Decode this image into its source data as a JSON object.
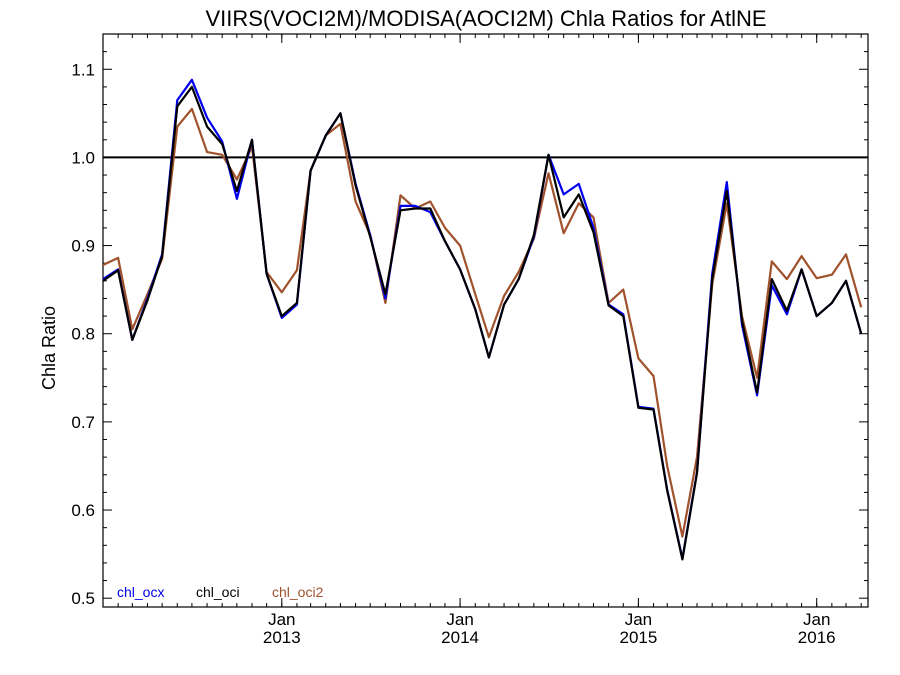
{
  "chart_data": {
    "type": "line",
    "title": "VIIRS(VOCI2M)/MODISA(AOCI2M)  Chla Ratios for AtlNE",
    "ylabel": "Chla Ratio",
    "xlabel": "",
    "ylim": [
      0.49,
      1.14
    ],
    "yticks": [
      0.5,
      0.6,
      0.7,
      0.8,
      0.9,
      1.0,
      1.1
    ],
    "ytick_labels": [
      "0.5",
      "0.6",
      "0.7",
      "0.8",
      "0.9",
      "1.0",
      "1.1"
    ],
    "xlim": [
      "2012-01-01",
      "2016-04-15"
    ],
    "xtick_dates": [
      "2013-01-01",
      "2014-01-01",
      "2015-01-01",
      "2016-01-01"
    ],
    "xtick_labels": [
      {
        "month": "Jan",
        "year": "2013"
      },
      {
        "month": "Jan",
        "year": "2014"
      },
      {
        "month": "Jan",
        "year": "2015"
      },
      {
        "month": "Jan",
        "year": "2016"
      }
    ],
    "reference_line": 1.0,
    "grid": false,
    "legend_position": "bottom-left",
    "x": [
      "2012-01-01",
      "2012-02-01",
      "2012-03-01",
      "2012-04-01",
      "2012-05-01",
      "2012-06-01",
      "2012-07-01",
      "2012-08-01",
      "2012-09-01",
      "2012-10-01",
      "2012-11-01",
      "2012-12-01",
      "2013-01-01",
      "2013-02-01",
      "2013-03-01",
      "2013-04-01",
      "2013-05-01",
      "2013-06-01",
      "2013-07-01",
      "2013-08-01",
      "2013-09-01",
      "2013-10-01",
      "2013-11-01",
      "2013-12-01",
      "2014-01-01",
      "2014-02-01",
      "2014-03-01",
      "2014-04-01",
      "2014-05-01",
      "2014-06-01",
      "2014-07-01",
      "2014-08-01",
      "2014-09-01",
      "2014-10-01",
      "2014-11-01",
      "2014-12-01",
      "2015-01-01",
      "2015-02-01",
      "2015-03-01",
      "2015-04-01",
      "2015-05-01",
      "2015-06-01",
      "2015-07-01",
      "2015-08-01",
      "2015-09-01",
      "2015-10-01",
      "2015-11-01",
      "2015-12-01",
      "2016-01-01",
      "2016-02-01",
      "2016-03-01",
      "2016-04-01"
    ],
    "series": [
      {
        "name": "chl_ocx",
        "color": "#0000ee",
        "values": [
          0.862,
          0.873,
          0.793,
          0.84,
          0.89,
          1.065,
          1.088,
          1.045,
          1.018,
          0.953,
          1.02,
          0.868,
          0.818,
          0.833,
          0.985,
          1.025,
          1.05,
          0.97,
          0.912,
          0.84,
          0.945,
          0.945,
          0.938,
          0.905,
          0.873,
          0.828,
          0.773,
          0.833,
          0.862,
          0.91,
          1.003,
          0.958,
          0.97,
          0.92,
          0.833,
          0.822,
          0.717,
          0.715,
          0.623,
          0.545,
          0.643,
          0.868,
          0.972,
          0.81,
          0.73,
          0.855,
          0.822,
          0.873,
          0.82,
          0.835,
          0.86,
          0.8
        ]
      },
      {
        "name": "chl_oci",
        "color": "#000000",
        "values": [
          0.86,
          0.872,
          0.793,
          0.838,
          0.888,
          1.058,
          1.08,
          1.035,
          1.015,
          0.962,
          1.02,
          0.868,
          0.82,
          0.835,
          0.985,
          1.025,
          1.05,
          0.968,
          0.91,
          0.845,
          0.94,
          0.942,
          0.942,
          0.905,
          0.873,
          0.828,
          0.773,
          0.833,
          0.862,
          0.912,
          1.003,
          0.932,
          0.958,
          0.915,
          0.832,
          0.82,
          0.716,
          0.714,
          0.622,
          0.544,
          0.642,
          0.862,
          0.962,
          0.815,
          0.733,
          0.862,
          0.826,
          0.873,
          0.82,
          0.835,
          0.86,
          0.8
        ]
      },
      {
        "name": "chl_oci2",
        "color": "#a0522d",
        "values": [
          0.878,
          0.886,
          0.805,
          0.845,
          0.885,
          1.035,
          1.055,
          1.006,
          1.003,
          0.975,
          1.012,
          0.87,
          0.847,
          0.872,
          0.985,
          1.025,
          1.038,
          0.95,
          0.912,
          0.835,
          0.957,
          0.942,
          0.95,
          0.92,
          0.9,
          0.845,
          0.796,
          0.843,
          0.87,
          0.908,
          0.982,
          0.914,
          0.948,
          0.932,
          0.835,
          0.85,
          0.772,
          0.752,
          0.65,
          0.57,
          0.66,
          0.856,
          0.948,
          0.82,
          0.75,
          0.882,
          0.862,
          0.888,
          0.863,
          0.867,
          0.89,
          0.83
        ]
      }
    ]
  }
}
